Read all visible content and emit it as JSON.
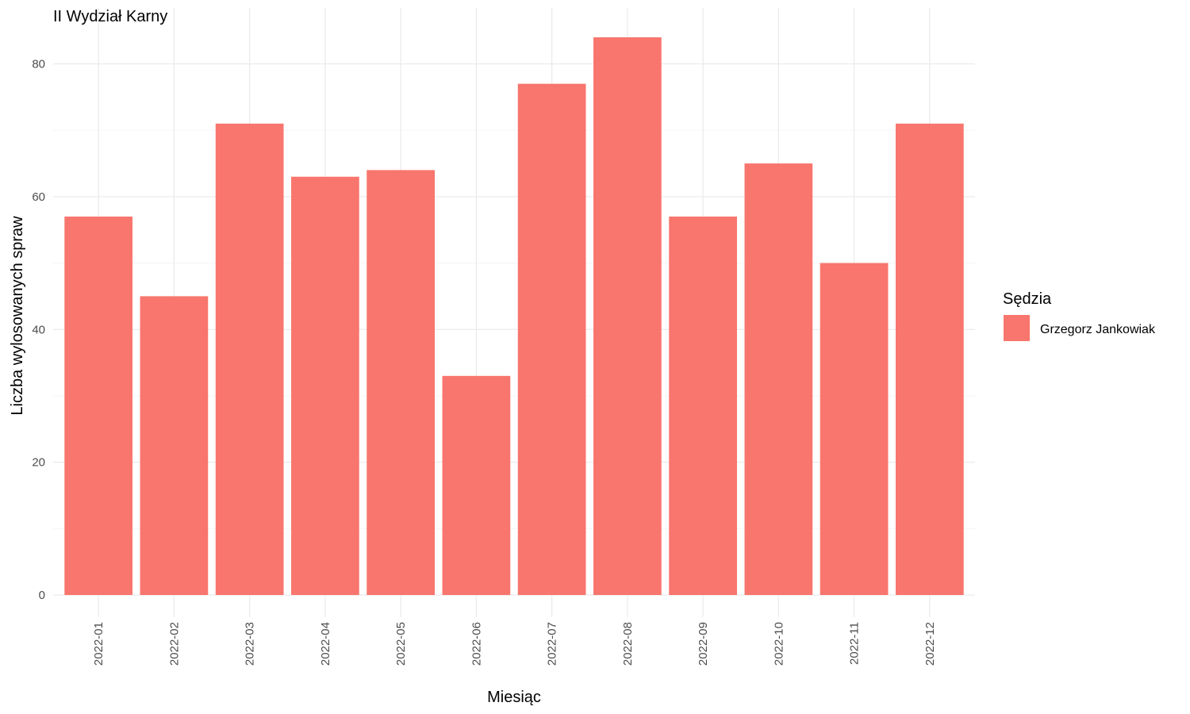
{
  "chart_data": {
    "type": "bar",
    "title": "II Wydział Karny",
    "xlabel": "Miesiąc",
    "ylabel": "Liczba wylosowanych spraw",
    "categories": [
      "2022-01",
      "2022-02",
      "2022-03",
      "2022-04",
      "2022-05",
      "2022-06",
      "2022-07",
      "2022-08",
      "2022-09",
      "2022-10",
      "2022-11",
      "2022-12"
    ],
    "series": [
      {
        "name": "Grzegorz Jankowiak",
        "color": "#f8766d",
        "values": [
          57,
          45,
          71,
          63,
          64,
          33,
          77,
          84,
          57,
          65,
          50,
          71
        ]
      }
    ],
    "ylim": [
      0,
      87
    ],
    "yticks": [
      0,
      20,
      40,
      60,
      80
    ],
    "ytick_labels": [
      "0",
      "20",
      "40",
      "60",
      "80"
    ],
    "grid": true,
    "legend": {
      "title": "Sędzia",
      "placement": "right"
    }
  }
}
